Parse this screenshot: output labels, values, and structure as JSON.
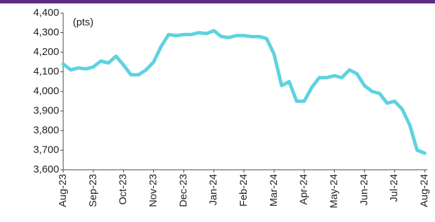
{
  "chart_data": {
    "type": "line",
    "annotation": "(pts)",
    "categories": [
      "Aug-23",
      null,
      null,
      null,
      "Sep-23",
      null,
      null,
      null,
      "Oct-23",
      null,
      null,
      null,
      "Nov-23",
      null,
      null,
      null,
      "Dec-23",
      null,
      null,
      null,
      "Jan-24",
      null,
      null,
      null,
      "Feb-24",
      null,
      null,
      null,
      "Mar-24",
      null,
      null,
      null,
      "Apr-24",
      null,
      null,
      null,
      "May-24",
      null,
      null,
      null,
      "Jun-24",
      null,
      null,
      null,
      "Jul-24",
      null,
      null,
      null,
      "Aug-24"
    ],
    "series": [
      {
        "color": "#5dd3df",
        "values": [
          4140,
          4110,
          4120,
          4115,
          4125,
          4155,
          4145,
          4180,
          4135,
          4085,
          4085,
          4110,
          4150,
          4230,
          4290,
          4285,
          4290,
          4290,
          4300,
          4295,
          4310,
          4280,
          4275,
          4285,
          4285,
          4280,
          4280,
          4270,
          4190,
          4030,
          4050,
          3950,
          3950,
          4020,
          4070,
          4070,
          4080,
          4070,
          4110,
          4090,
          4030,
          4000,
          3990,
          3940,
          3950,
          3910,
          3830,
          3700,
          3685
        ]
      }
    ],
    "ylim": [
      3600,
      4400
    ],
    "yticks": [
      {
        "value": 3600,
        "label": "3,600"
      },
      {
        "value": 3700,
        "label": "3,700"
      },
      {
        "value": 3800,
        "label": "3,800"
      },
      {
        "value": 3900,
        "label": "3,900"
      },
      {
        "value": 4000,
        "label": "4,000"
      },
      {
        "value": 4100,
        "label": "4,100"
      },
      {
        "value": 4200,
        "label": "4,200"
      },
      {
        "value": 4300,
        "label": "4,300"
      },
      {
        "value": 4400,
        "label": "4,400"
      }
    ],
    "grid": false
  }
}
